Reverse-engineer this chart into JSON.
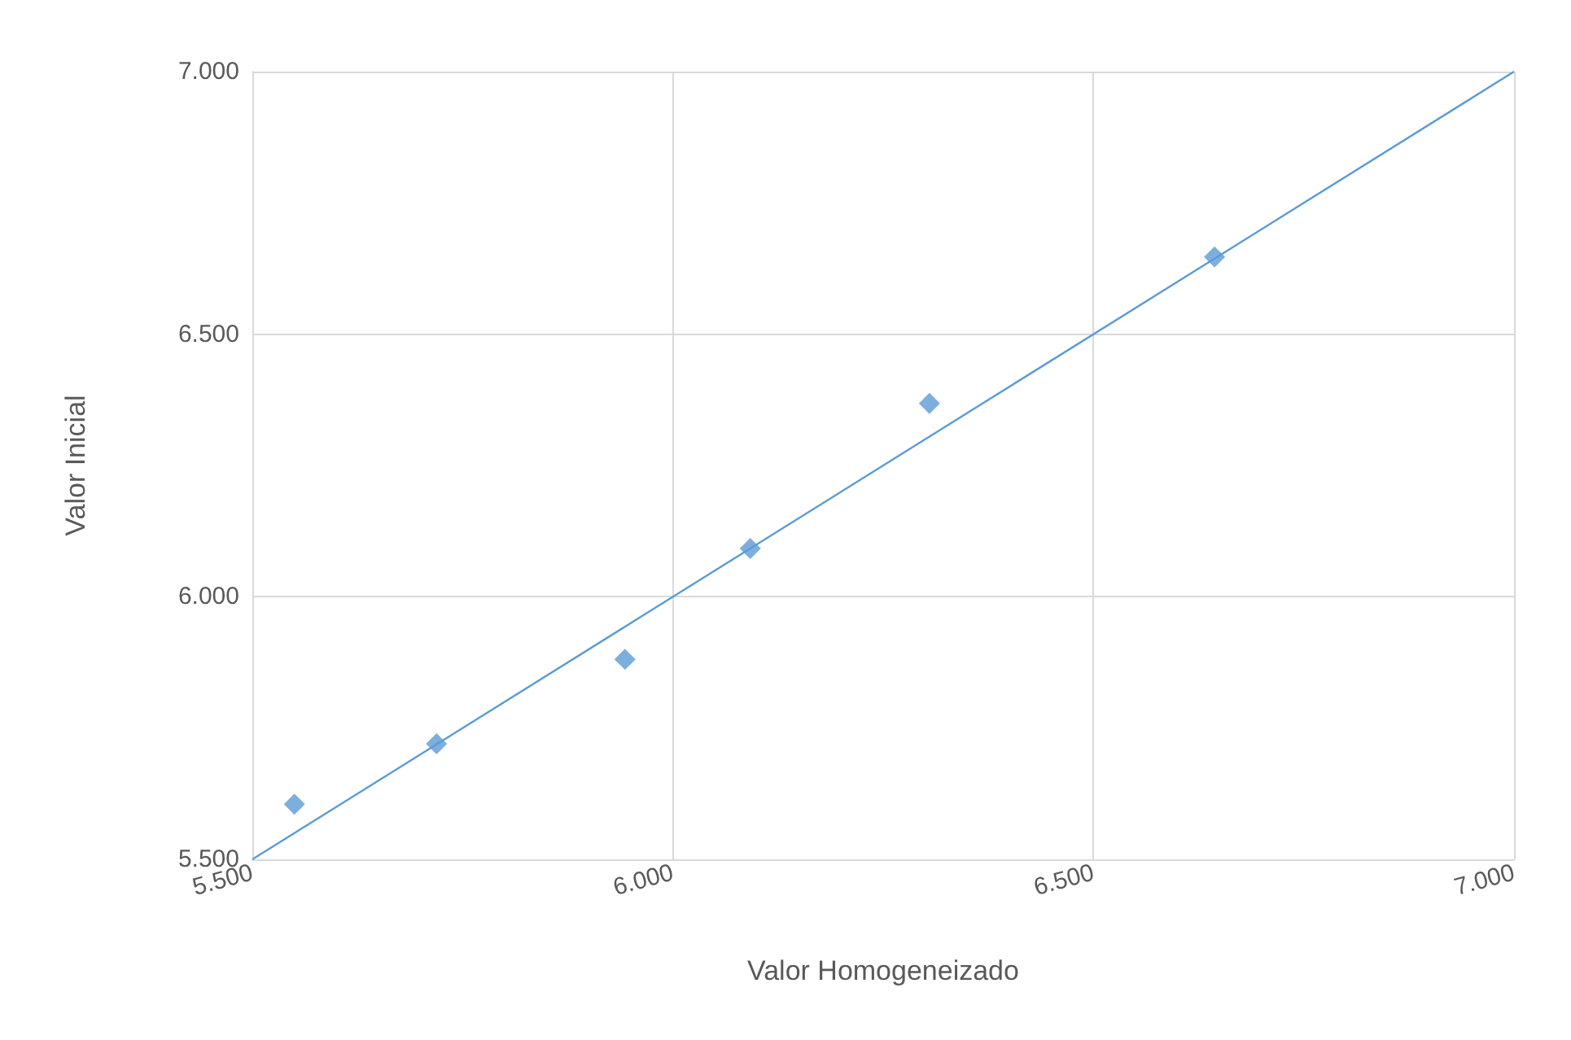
{
  "chart_data": {
    "type": "scatter",
    "xlabel": "Valor Homogeneizado",
    "ylabel": "Valor Inicial",
    "series": [
      {
        "color": "#5b9bd5",
        "marker": "diamond",
        "x": [
          5550,
          5719,
          5943,
          6092,
          6305,
          6644
        ],
        "values": [
          5605,
          5720,
          5881,
          6092,
          6368,
          6647
        ]
      },
      {
        "type": "line",
        "marker": "none",
        "color": "#5b9bd5",
        "x": [
          5500,
          7000
        ],
        "values": [
          5500,
          7000
        ]
      }
    ],
    "xlim": [
      5500,
      7000
    ],
    "xticks": [
      {
        "value": 5500,
        "label": "5.500"
      },
      {
        "value": 6000,
        "label": "6.000"
      },
      {
        "value": 6500,
        "label": "6.500"
      },
      {
        "value": 7000,
        "label": "7.000"
      }
    ],
    "ylim": [
      5500,
      7000
    ],
    "yticks": [
      {
        "value": 5500,
        "label": "5.500"
      },
      {
        "value": 6000,
        "label": "6.000"
      },
      {
        "value": 6500,
        "label": "6.500"
      },
      {
        "value": 7000,
        "label": "7.000"
      }
    ],
    "grid": true
  }
}
